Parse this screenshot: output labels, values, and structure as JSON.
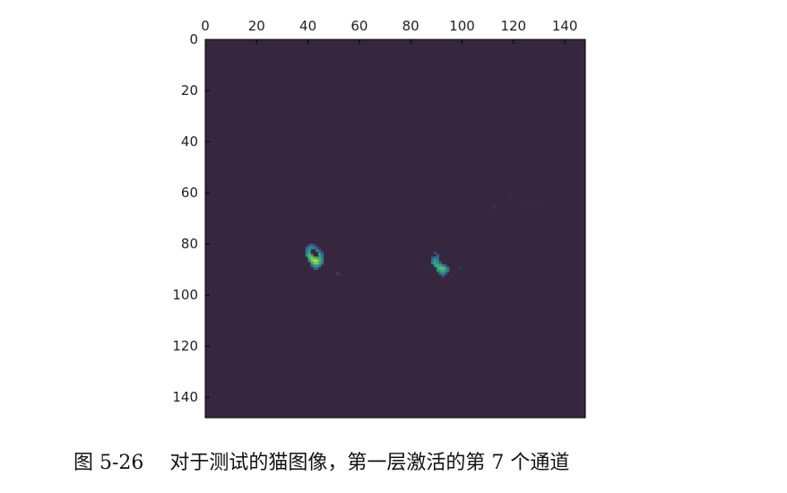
{
  "caption": "图 5-26　 对于测试的猫图像，第一层激活的第 7 个通道",
  "chart_data": {
    "type": "heatmap",
    "title": "",
    "xlabel": "",
    "ylabel": "",
    "x_axis_position": "top",
    "xlim": [
      0,
      148
    ],
    "ylim": [
      148,
      0
    ],
    "x_ticks": [
      0,
      20,
      40,
      60,
      80,
      100,
      120,
      140
    ],
    "y_ticks": [
      0,
      20,
      40,
      60,
      80,
      100,
      120,
      140
    ],
    "grid": false,
    "background_value": 0,
    "colormap": "viridis",
    "colors": {
      "background": "#36273f",
      "low": "#3b4f8a",
      "mid": "#2ea38a",
      "high": "#b9de2f"
    },
    "hotspots": [
      {
        "x": 42,
        "y": 86,
        "peak": 1.0
      },
      {
        "x": 92,
        "y": 89,
        "peak": 0.85
      }
    ],
    "cells": [
      {
        "x": 40,
        "y": 80,
        "v": 0.35
      },
      {
        "x": 41,
        "y": 80,
        "v": 0.45
      },
      {
        "x": 42,
        "y": 80,
        "v": 0.3
      },
      {
        "x": 39,
        "y": 81,
        "v": 0.4
      },
      {
        "x": 40,
        "y": 81,
        "v": 0.55
      },
      {
        "x": 41,
        "y": 81,
        "v": 0.6
      },
      {
        "x": 42,
        "y": 81,
        "v": 0.5
      },
      {
        "x": 43,
        "y": 81,
        "v": 0.35
      },
      {
        "x": 39,
        "y": 82,
        "v": 0.5
      },
      {
        "x": 40,
        "y": 82,
        "v": 0.65
      },
      {
        "x": 43,
        "y": 82,
        "v": 0.55
      },
      {
        "x": 44,
        "y": 82,
        "v": 0.4
      },
      {
        "x": 39,
        "y": 83,
        "v": 0.55
      },
      {
        "x": 40,
        "y": 83,
        "v": 0.7
      },
      {
        "x": 44,
        "y": 83,
        "v": 0.6
      },
      {
        "x": 45,
        "y": 83,
        "v": 0.35
      },
      {
        "x": 39,
        "y": 84,
        "v": 0.6
      },
      {
        "x": 40,
        "y": 84,
        "v": 0.8
      },
      {
        "x": 41,
        "y": 84,
        "v": 0.7
      },
      {
        "x": 44,
        "y": 84,
        "v": 0.65
      },
      {
        "x": 45,
        "y": 84,
        "v": 0.5
      },
      {
        "x": 40,
        "y": 85,
        "v": 0.75
      },
      {
        "x": 41,
        "y": 85,
        "v": 0.9
      },
      {
        "x": 42,
        "y": 85,
        "v": 0.8
      },
      {
        "x": 43,
        "y": 85,
        "v": 0.75
      },
      {
        "x": 44,
        "y": 85,
        "v": 0.7
      },
      {
        "x": 45,
        "y": 85,
        "v": 0.55
      },
      {
        "x": 40,
        "y": 86,
        "v": 0.6
      },
      {
        "x": 41,
        "y": 86,
        "v": 0.85
      },
      {
        "x": 42,
        "y": 86,
        "v": 1.0
      },
      {
        "x": 43,
        "y": 86,
        "v": 0.95
      },
      {
        "x": 44,
        "y": 86,
        "v": 0.8
      },
      {
        "x": 45,
        "y": 86,
        "v": 0.6
      },
      {
        "x": 41,
        "y": 87,
        "v": 0.7
      },
      {
        "x": 42,
        "y": 87,
        "v": 0.85
      },
      {
        "x": 43,
        "y": 87,
        "v": 0.9
      },
      {
        "x": 44,
        "y": 87,
        "v": 0.75
      },
      {
        "x": 45,
        "y": 87,
        "v": 0.5
      },
      {
        "x": 41,
        "y": 88,
        "v": 0.45
      },
      {
        "x": 42,
        "y": 88,
        "v": 0.65
      },
      {
        "x": 43,
        "y": 88,
        "v": 0.7
      },
      {
        "x": 44,
        "y": 88,
        "v": 0.55
      },
      {
        "x": 42,
        "y": 89,
        "v": 0.4
      },
      {
        "x": 43,
        "y": 89,
        "v": 0.45
      },
      {
        "x": 51,
        "y": 91,
        "v": 0.2
      },
      {
        "x": 89,
        "y": 83,
        "v": 0.3
      },
      {
        "x": 90,
        "y": 84,
        "v": 0.4
      },
      {
        "x": 88,
        "y": 85,
        "v": 0.4
      },
      {
        "x": 89,
        "y": 85,
        "v": 0.55
      },
      {
        "x": 90,
        "y": 85,
        "v": 0.45
      },
      {
        "x": 88,
        "y": 86,
        "v": 0.5
      },
      {
        "x": 89,
        "y": 86,
        "v": 0.65
      },
      {
        "x": 90,
        "y": 86,
        "v": 0.55
      },
      {
        "x": 88,
        "y": 87,
        "v": 0.55
      },
      {
        "x": 89,
        "y": 87,
        "v": 0.7
      },
      {
        "x": 90,
        "y": 87,
        "v": 0.6
      },
      {
        "x": 91,
        "y": 87,
        "v": 0.45
      },
      {
        "x": 89,
        "y": 88,
        "v": 0.65
      },
      {
        "x": 90,
        "y": 88,
        "v": 0.75
      },
      {
        "x": 91,
        "y": 88,
        "v": 0.7
      },
      {
        "x": 92,
        "y": 88,
        "v": 0.55
      },
      {
        "x": 93,
        "y": 88,
        "v": 0.4
      },
      {
        "x": 90,
        "y": 89,
        "v": 0.7
      },
      {
        "x": 91,
        "y": 89,
        "v": 0.8
      },
      {
        "x": 92,
        "y": 89,
        "v": 0.85
      },
      {
        "x": 93,
        "y": 89,
        "v": 0.7
      },
      {
        "x": 94,
        "y": 89,
        "v": 0.5
      },
      {
        "x": 90,
        "y": 90,
        "v": 0.55
      },
      {
        "x": 91,
        "y": 90,
        "v": 0.7
      },
      {
        "x": 92,
        "y": 90,
        "v": 0.75
      },
      {
        "x": 93,
        "y": 90,
        "v": 0.65
      },
      {
        "x": 94,
        "y": 90,
        "v": 0.45
      },
      {
        "x": 91,
        "y": 91,
        "v": 0.5
      },
      {
        "x": 92,
        "y": 91,
        "v": 0.6
      },
      {
        "x": 93,
        "y": 91,
        "v": 0.45
      },
      {
        "x": 92,
        "y": 92,
        "v": 0.35
      },
      {
        "x": 99,
        "y": 89,
        "v": 0.15
      },
      {
        "x": 112,
        "y": 65,
        "v": 0.12
      },
      {
        "x": 118,
        "y": 61,
        "v": 0.1
      },
      {
        "x": 125,
        "y": 63,
        "v": 0.1
      },
      {
        "x": 129,
        "y": 64,
        "v": 0.08
      }
    ]
  }
}
